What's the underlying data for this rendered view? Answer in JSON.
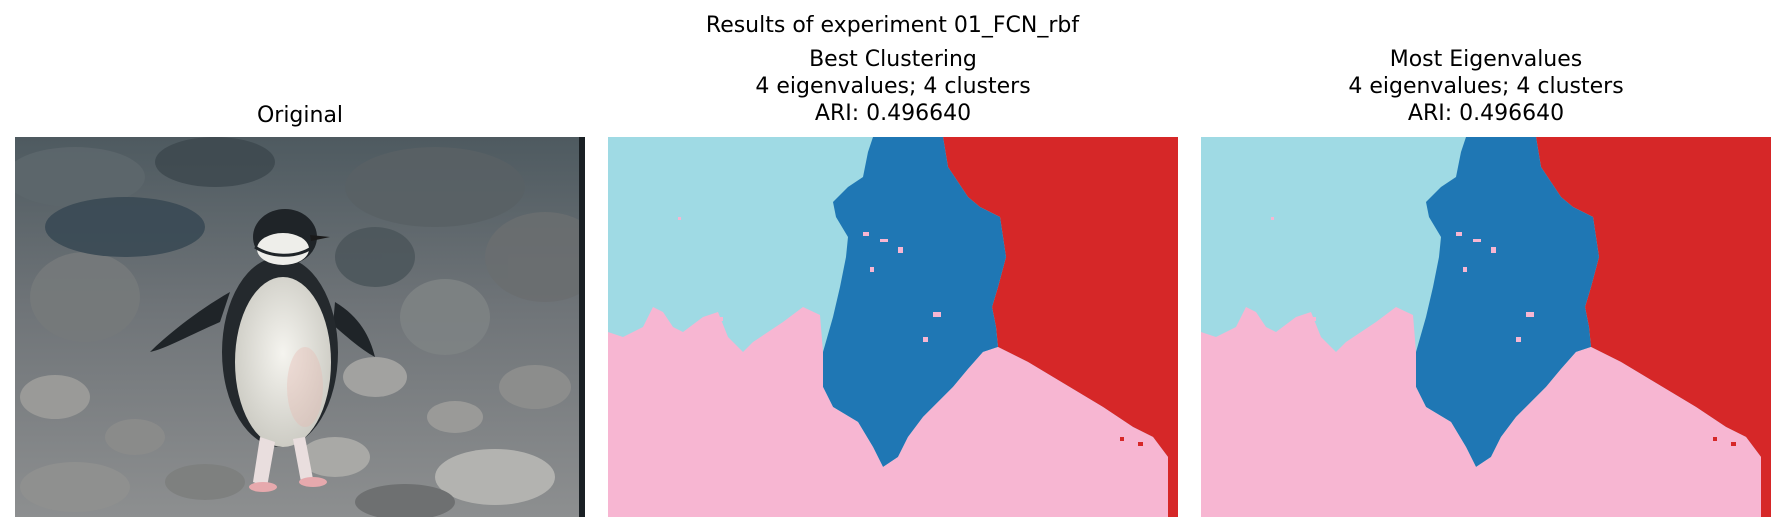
{
  "figure": {
    "suptitle": "Results of experiment 01_FCN_rbf"
  },
  "panels": [
    {
      "id": "original",
      "lines": [
        "Original"
      ]
    },
    {
      "id": "best",
      "lines": [
        "Best Clustering",
        "4 eigenvalues; 4 clusters",
        "ARI: 0.496640"
      ]
    },
    {
      "id": "most",
      "lines": [
        "Most Eigenvalues",
        "4 eigenvalues; 4 clusters",
        "ARI: 0.496640"
      ]
    }
  ],
  "cluster_colors": {
    "light_blue": "#9fdae4",
    "dark_blue": "#1f77b4",
    "red": "#d62728",
    "pink": "#f7b6d2"
  },
  "image_subject": "penguin-on-rocks"
}
